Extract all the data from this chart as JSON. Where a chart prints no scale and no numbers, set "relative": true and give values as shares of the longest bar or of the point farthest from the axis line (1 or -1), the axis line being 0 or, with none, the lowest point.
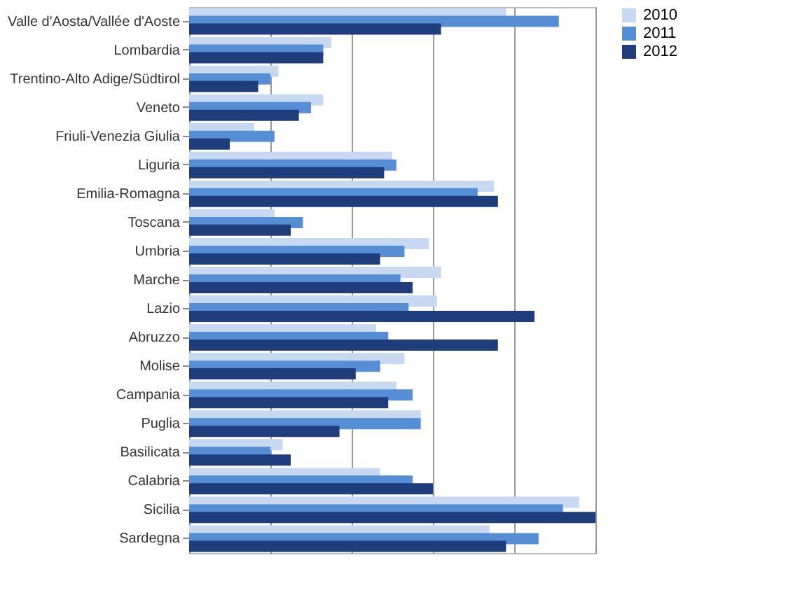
{
  "chart_data": {
    "type": "bar",
    "orientation": "horizontal",
    "relative": true,
    "grid": "x",
    "legend": "right",
    "categories": [
      "Valle d'Aosta/Vallée d'Aoste",
      "Lombardia",
      "Trentino-Alto Adige/Südtirol",
      "Veneto",
      "Friuli-Venezia Giulia",
      "Liguria",
      "Emilia-Romagna",
      "Toscana",
      "Umbria",
      "Marche",
      "Lazio",
      "Abruzzo",
      "Molise",
      "Campania",
      "Puglia",
      "Basilicata",
      "Calabria",
      "Sicilia",
      "Sardegna"
    ],
    "series": [
      {
        "name": "2010",
        "color": "#c6d9f1",
        "values": [
          0.78,
          0.35,
          0.22,
          0.33,
          0.16,
          0.5,
          0.75,
          0.21,
          0.59,
          0.62,
          0.61,
          0.46,
          0.53,
          0.51,
          0.57,
          0.23,
          0.47,
          0.96,
          0.74
        ]
      },
      {
        "name": "2011",
        "color": "#558ed5",
        "values": [
          0.91,
          0.33,
          0.2,
          0.3,
          0.21,
          0.51,
          0.71,
          0.28,
          0.53,
          0.52,
          0.54,
          0.49,
          0.47,
          0.55,
          0.57,
          0.2,
          0.55,
          0.92,
          0.86
        ]
      },
      {
        "name": "2012",
        "color": "#1f3d7a",
        "values": [
          0.62,
          0.33,
          0.17,
          0.27,
          0.1,
          0.48,
          0.76,
          0.25,
          0.47,
          0.55,
          0.85,
          0.76,
          0.41,
          0.49,
          0.37,
          0.25,
          0.6,
          1,
          0.78
        ]
      }
    ]
  }
}
